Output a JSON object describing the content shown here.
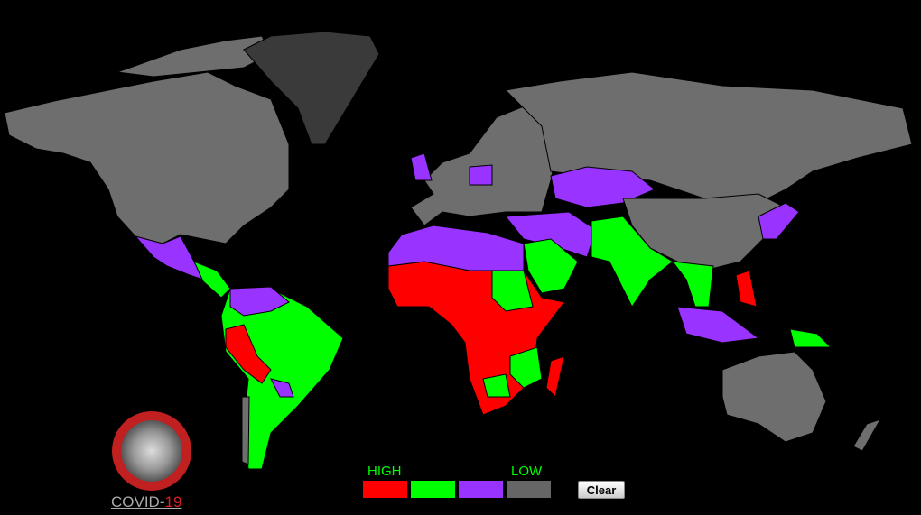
{
  "legend": {
    "high_label": "HIGH",
    "low_label": "LOW",
    "colors": [
      "#ff0000",
      "#00ff00",
      "#9933ff",
      "#666666"
    ]
  },
  "button": {
    "label": "Clear"
  },
  "logo": {
    "text": "COVID-",
    "number": "19"
  }
}
